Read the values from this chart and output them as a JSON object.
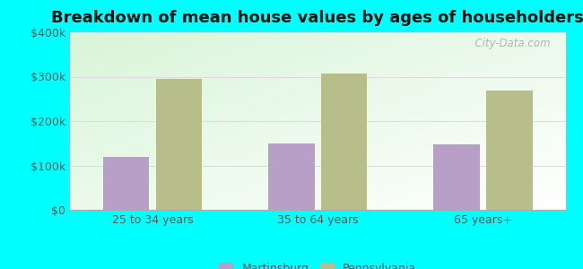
{
  "title": "Breakdown of mean house values by ages of householders",
  "categories": [
    "25 to 34 years",
    "35 to 64 years",
    "65 years+"
  ],
  "martinsburg_values": [
    120000,
    150000,
    148000
  ],
  "pennsylvania_values": [
    295000,
    308000,
    268000
  ],
  "martinsburg_color": "#b89fc8",
  "pennsylvania_color": "#b8be8a",
  "ylim": [
    0,
    400000
  ],
  "yticks": [
    0,
    100000,
    200000,
    300000,
    400000
  ],
  "ytick_labels": [
    "$0",
    "$100k",
    "$200k",
    "$300k",
    "$400k"
  ],
  "background_color": "#00ffff",
  "bar_width": 0.28,
  "legend_labels": [
    "Martinsburg",
    "Pennsylvania"
  ],
  "title_fontsize": 13,
  "watermark": "  City-Data.com"
}
